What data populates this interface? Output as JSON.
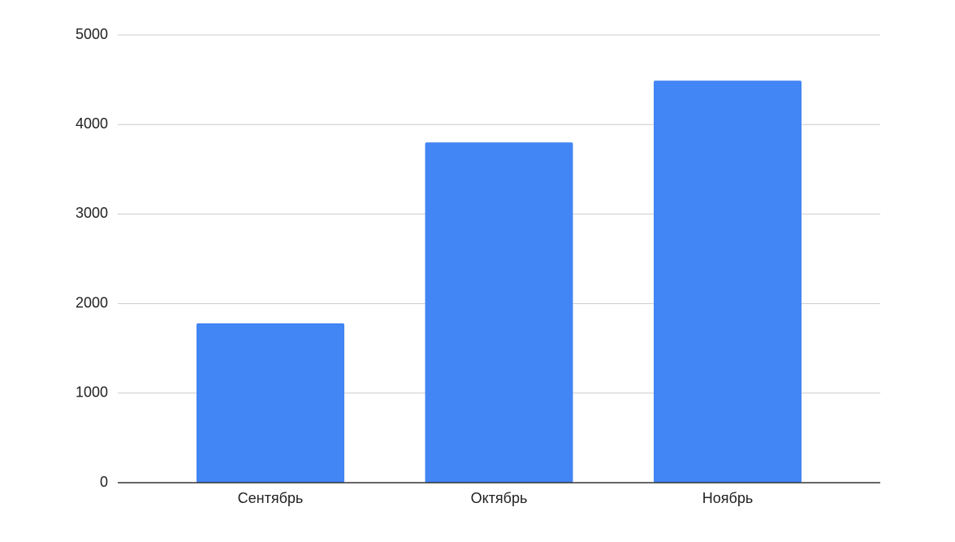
{
  "chart_data": {
    "type": "bar",
    "categories": [
      "Сентябрь",
      "Октябрь",
      "Ноябрь"
    ],
    "values": [
      1780,
      3800,
      4490
    ],
    "color": "#4285f4",
    "ylim": [
      0,
      5000
    ],
    "yticks": [
      0,
      1000,
      2000,
      3000,
      4000,
      5000
    ],
    "grid": true
  }
}
